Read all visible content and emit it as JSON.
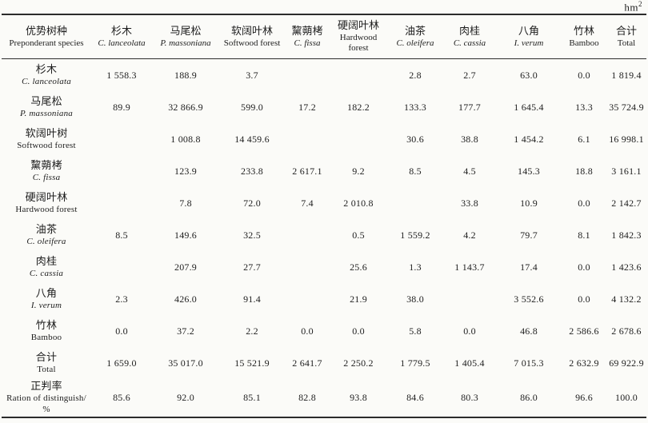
{
  "unit": {
    "base": "hm",
    "exp": "2"
  },
  "table": {
    "columns": [
      {
        "cn": "优势树种",
        "sub": "Preponderant species",
        "italic": false,
        "wrap": true
      },
      {
        "cn": "杉木",
        "sub": "C. lanceolata",
        "italic": true,
        "wrap": false
      },
      {
        "cn": "马尾松",
        "sub": "P. massoniana",
        "italic": true,
        "wrap": false
      },
      {
        "cn": "软阔叶林",
        "sub": "Softwood forest",
        "italic": false,
        "wrap": false
      },
      {
        "cn": "黧蒴栲",
        "sub": "C. fissa",
        "italic": true,
        "wrap": false
      },
      {
        "cn": "硬阔叶林",
        "sub": "Hardwood forest",
        "italic": false,
        "wrap": true
      },
      {
        "cn": "油茶",
        "sub": "C. oleifera",
        "italic": true,
        "wrap": false
      },
      {
        "cn": "肉桂",
        "sub": "C. cassia",
        "italic": true,
        "wrap": false
      },
      {
        "cn": "八角",
        "sub": "I. verum",
        "italic": true,
        "wrap": false
      },
      {
        "cn": "竹林",
        "sub": "Bamboo",
        "italic": false,
        "wrap": false
      },
      {
        "cn": "合计",
        "sub": "Total",
        "italic": false,
        "wrap": false
      }
    ],
    "rows": [
      {
        "cn": "杉木",
        "sub": "C. lanceolata",
        "italic": true,
        "tall": false,
        "values": [
          "1 558.3",
          "188.9",
          "3.7",
          "",
          "",
          "2.8",
          "2.7",
          "63.0",
          "0.0",
          "1 819.4"
        ]
      },
      {
        "cn": "马尾松",
        "sub": "P. massoniana",
        "italic": true,
        "tall": false,
        "values": [
          "89.9",
          "32 866.9",
          "599.0",
          "17.2",
          "182.2",
          "133.3",
          "177.7",
          "1 645.4",
          "13.3",
          "35 724.9"
        ]
      },
      {
        "cn": "软阔叶树",
        "sub": "Softwood forest",
        "italic": false,
        "tall": false,
        "values": [
          "",
          "1 008.8",
          "14 459.6",
          "",
          "",
          "30.6",
          "38.8",
          "1 454.2",
          "6.1",
          "16 998.1"
        ]
      },
      {
        "cn": "黧蒴栲",
        "sub": "C. fissa",
        "italic": true,
        "tall": false,
        "values": [
          "",
          "123.9",
          "233.8",
          "2 617.1",
          "9.2",
          "8.5",
          "4.5",
          "145.3",
          "18.8",
          "3 161.1"
        ]
      },
      {
        "cn": "硬阔叶林",
        "sub": "Hardwood forest",
        "italic": false,
        "tall": false,
        "values": [
          "",
          "7.8",
          "72.0",
          "7.4",
          "2 010.8",
          "",
          "33.8",
          "10.9",
          "0.0",
          "2 142.7"
        ]
      },
      {
        "cn": "油茶",
        "sub": "C. oleifera",
        "italic": true,
        "tall": false,
        "values": [
          "8.5",
          "149.6",
          "32.5",
          "",
          "0.5",
          "1 559.2",
          "4.2",
          "79.7",
          "8.1",
          "1 842.3"
        ]
      },
      {
        "cn": "肉桂",
        "sub": "C. cassia",
        "italic": true,
        "tall": false,
        "values": [
          "",
          "207.9",
          "27.7",
          "",
          "25.6",
          "1.3",
          "1 143.7",
          "17.4",
          "0.0",
          "1 423.6"
        ]
      },
      {
        "cn": "八角",
        "sub": "I. verum",
        "italic": true,
        "tall": false,
        "values": [
          "2.3",
          "426.0",
          "91.4",
          "",
          "21.9",
          "38.0",
          "",
          "3 552.6",
          "0.0",
          "4 132.2"
        ]
      },
      {
        "cn": "竹林",
        "sub": "Bamboo",
        "italic": false,
        "tall": false,
        "values": [
          "0.0",
          "37.2",
          "2.2",
          "0.0",
          "0.0",
          "5.8",
          "0.0",
          "46.8",
          "2 586.6",
          "2 678.6"
        ]
      },
      {
        "cn": "合计",
        "sub": "Total",
        "italic": false,
        "tall": false,
        "values": [
          "1 659.0",
          "35 017.0",
          "15 521.9",
          "2 641.7",
          "2 250.2",
          "1 779.5",
          "1 405.4",
          "7 015.3",
          "2 632.9",
          "69 922.9"
        ]
      },
      {
        "cn": "正判率",
        "sub": "Ration of distinguish/ %",
        "italic": false,
        "tall": true,
        "values": [
          "85.6",
          "92.0",
          "85.1",
          "82.8",
          "93.8",
          "84.6",
          "80.3",
          "86.0",
          "96.6",
          "100.0"
        ]
      }
    ]
  }
}
